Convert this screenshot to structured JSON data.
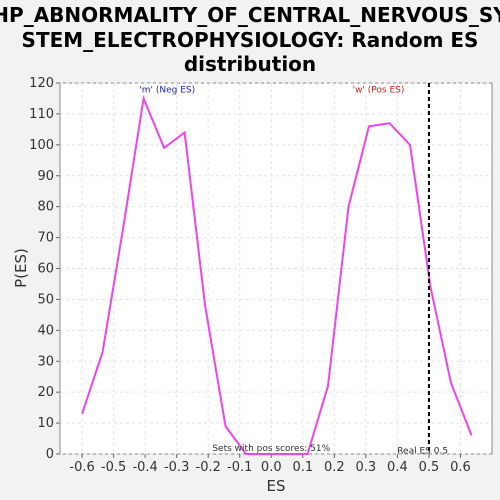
{
  "chart_data": {
    "type": "line",
    "title_lines": [
      "HP_ABNORMALITY_OF_CENTRAL_NERVOUS_SY",
      "STEM_ELECTROPHYSIOLOGY: Random ES",
      "distribution"
    ],
    "xlabel": "ES",
    "ylabel": "P(ES)",
    "xlim": [
      -0.67,
      0.7
    ],
    "ylim": [
      0,
      120
    ],
    "x_ticks": [
      -0.6,
      -0.5,
      -0.4,
      -0.3,
      -0.2,
      -0.1,
      0.0,
      0.1,
      0.2,
      0.3,
      0.4,
      0.5,
      0.6
    ],
    "x_tick_labels": [
      "-0.6",
      "-0.5",
      "-0.4",
      "-0.3",
      "-0.2",
      "-0.1",
      "0.0",
      "0.1",
      "0.2",
      "0.3",
      "0.4",
      "0.5",
      "0.6"
    ],
    "y_ticks": [
      0,
      10,
      20,
      30,
      40,
      50,
      60,
      70,
      80,
      90,
      100,
      110,
      120
    ],
    "y_tick_labels": [
      "0",
      "10",
      "20",
      "30",
      "40",
      "50",
      "60",
      "70",
      "80",
      "90",
      "100",
      "110",
      "120"
    ],
    "grid": true,
    "series": [
      {
        "color": "#ee44ee",
        "x": [
          -0.6,
          -0.535,
          -0.47,
          -0.405,
          -0.34,
          -0.275,
          -0.21,
          -0.145,
          -0.08,
          -0.015,
          0.05,
          0.115,
          0.18,
          0.245,
          0.31,
          0.375,
          0.44,
          0.505,
          0.57,
          0.635
        ],
        "y": [
          13,
          33,
          73,
          115,
          99,
          104,
          48,
          9,
          0,
          0,
          0,
          0,
          22,
          80,
          106,
          107,
          100,
          54,
          23,
          6
        ]
      }
    ],
    "real_es": 0.5,
    "real_es_label": "Real ES 0.5",
    "annotations": [
      {
        "text": "'m' (Neg ES)",
        "color": "#2222cc",
        "x": -0.33,
        "y": 117
      },
      {
        "text": "'w' (Pos ES)",
        "color": "#cc2222",
        "x": 0.34,
        "y": 117
      },
      {
        "text": "Sets with pos scores: 51%",
        "color": "#333333",
        "x": 0.0,
        "y": 1
      },
      {
        "text": "Real ES 0.5",
        "color": "#333333",
        "x": 0.48,
        "y": 0.2
      }
    ]
  }
}
